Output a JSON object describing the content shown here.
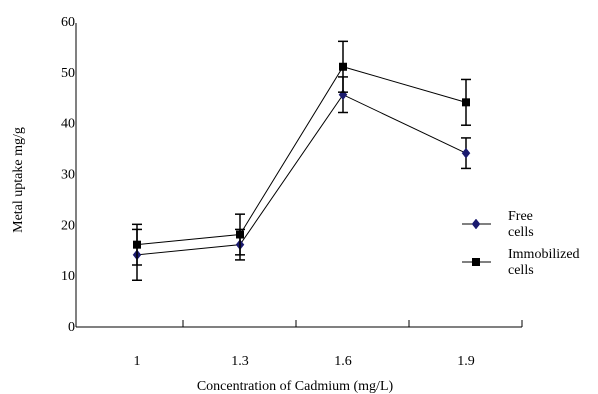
{
  "chart_data": {
    "type": "line",
    "xlabel": "Concentration of Cadmium (mg/L)",
    "ylabel": "Metal uptake mg/g",
    "categories": [
      "1",
      "1.3",
      "1.6",
      "1.9"
    ],
    "ylim": [
      0,
      60
    ],
    "yticks": [
      "0",
      "10",
      "20",
      "30",
      "40",
      "50",
      "60"
    ],
    "grid": false,
    "legend_position": "right",
    "series": [
      {
        "name": "Free cells",
        "marker": "diamond",
        "color": "#1a1a6e",
        "values": [
          14,
          16,
          45.5,
          34
        ],
        "errors": [
          5,
          3,
          3.5,
          3
        ]
      },
      {
        "name": "Immobilized cells",
        "marker": "square",
        "color": "#000000",
        "values": [
          16,
          18,
          51,
          44
        ],
        "errors": [
          4,
          4,
          5,
          4.5
        ]
      }
    ]
  }
}
